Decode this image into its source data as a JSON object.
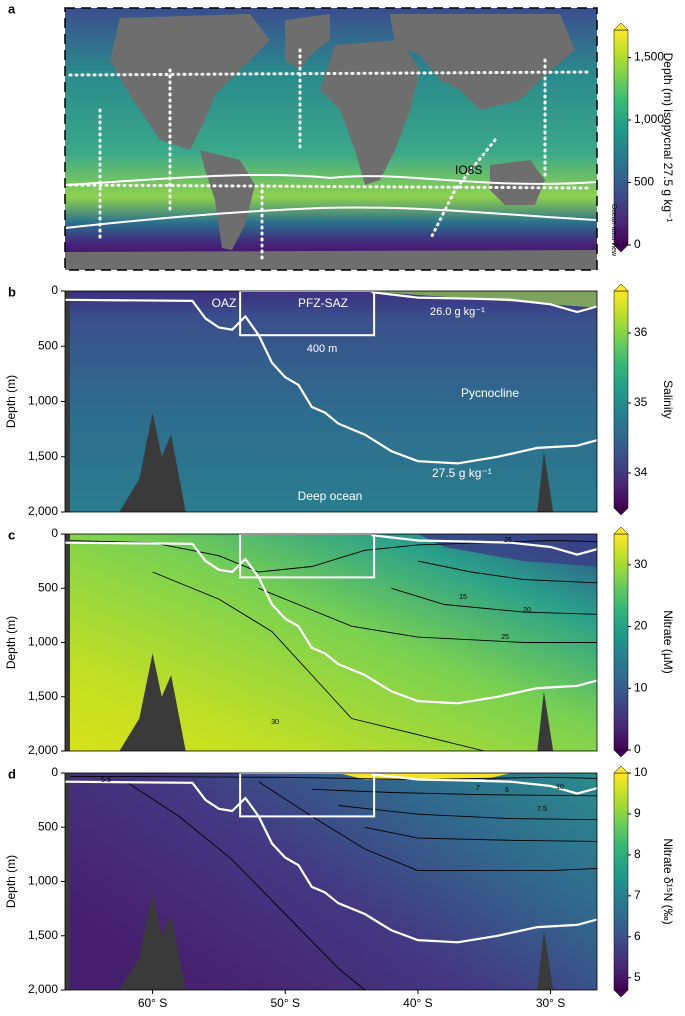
{
  "chart_data": [
    {
      "type": "map",
      "panel": "a",
      "colorbar_label": "Depth (m) isopycnal 27.5 g kg⁻¹",
      "colormap": "viridis",
      "clim": [
        0,
        1720
      ],
      "cticks": [
        0,
        500,
        {
          "value": 1000,
          "label": "1,000"
        },
        {
          "value": 1500,
          "label": "1,500"
        }
      ],
      "annotations": [
        "IO8S",
        "Ocean data view"
      ]
    },
    {
      "type": "section",
      "panel": "b",
      "ylabel": "Depth (m)",
      "colorbar_label": "Salinity",
      "colormap": "viridis",
      "clim": [
        33.5,
        36.6
      ],
      "cticks": [
        34,
        35,
        36
      ],
      "xlim": [
        -66.6,
        -26.5
      ],
      "ylim": [
        0,
        2000
      ],
      "yticks": [
        0,
        500,
        {
          "value": 1000,
          "label": "1,000"
        },
        {
          "value": 1500,
          "label": "1,500"
        },
        {
          "value": 2000,
          "label": "2,000"
        }
      ],
      "annotations": [
        "OAZ",
        "PFZ-SAZ",
        "26.0 g kg⁻¹",
        "400 m",
        "Pycnocline",
        "27.5 g kg⁻¹",
        "Deep ocean"
      ]
    },
    {
      "type": "section",
      "panel": "c",
      "ylabel": "Depth (m)",
      "colorbar_label": "Nitrate (µM)",
      "colormap": "viridis",
      "clim": [
        0,
        35
      ],
      "cticks": [
        0,
        10,
        20,
        30
      ],
      "xlim": [
        -66.6,
        -26.5
      ],
      "ylim": [
        0,
        2000
      ],
      "yticks": [
        0,
        500,
        {
          "value": 1000,
          "label": "1,000"
        },
        {
          "value": 1500,
          "label": "1,500"
        },
        {
          "value": 2000,
          "label": "2,000"
        }
      ],
      "annotations": [
        "26",
        "15",
        "20",
        "25",
        "30"
      ]
    },
    {
      "type": "section",
      "panel": "d",
      "ylabel": "Depth (m)",
      "colorbar_label": "Nitrate δ¹⁵N (‰)",
      "colormap": "viridis",
      "clim": [
        4.7,
        10
      ],
      "cticks": [
        5,
        6,
        7,
        8,
        9,
        10
      ],
      "xlim": [
        -66.6,
        -26.5
      ],
      "ylim": [
        0,
        2000
      ],
      "yticks": [
        0,
        500,
        {
          "value": 1000,
          "label": "1,000"
        },
        {
          "value": 1500,
          "label": "1,500"
        },
        {
          "value": 2000,
          "label": "2,000"
        }
      ],
      "xticks": [
        {
          "value": -60,
          "label": "60° S"
        },
        {
          "value": -50,
          "label": "50° S"
        },
        {
          "value": -40,
          "label": "40° S"
        },
        {
          "value": -30,
          "label": "30° S"
        }
      ],
      "annotations": [
        "5.5",
        "6",
        "7",
        "7.5",
        "10"
      ]
    }
  ]
}
